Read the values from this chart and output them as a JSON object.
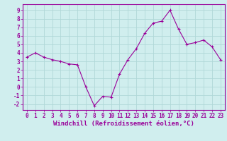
{
  "x": [
    0,
    1,
    2,
    3,
    4,
    5,
    6,
    7,
    8,
    9,
    10,
    11,
    12,
    13,
    14,
    15,
    16,
    17,
    18,
    19,
    20,
    21,
    22,
    23
  ],
  "y": [
    3.5,
    4.0,
    3.5,
    3.2,
    3.0,
    2.7,
    2.6,
    0.0,
    -2.2,
    -1.1,
    -1.2,
    1.5,
    3.2,
    4.5,
    6.3,
    7.5,
    7.7,
    9.0,
    6.8,
    5.0,
    5.2,
    5.5,
    4.7,
    3.2
  ],
  "line_color": "#990099",
  "marker": "+",
  "marker_size": 3,
  "bg_color": "#d0eeee",
  "grid_color": "#b0d8d8",
  "xlabel": "Windchill (Refroidissement éolien,°C)",
  "ylabel_ticks": [
    -2,
    -1,
    0,
    1,
    2,
    3,
    4,
    5,
    6,
    7,
    8,
    9
  ],
  "xlim": [
    -0.5,
    23.5
  ],
  "ylim": [
    -2.7,
    9.7
  ],
  "tick_fontsize": 5.5,
  "xlabel_fontsize": 6.5,
  "label_color": "#990099",
  "spine_color": "#990099"
}
